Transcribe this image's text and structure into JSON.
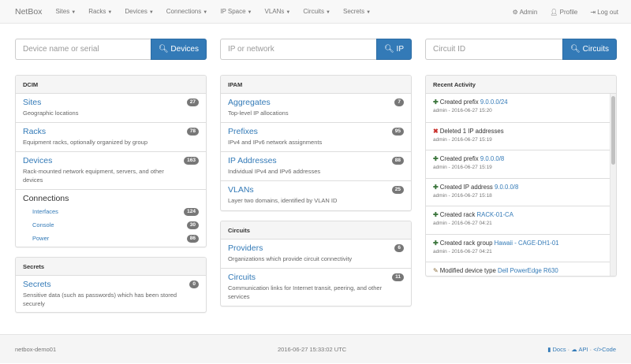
{
  "nav": {
    "brand": "NetBox",
    "menus": [
      "Sites",
      "Racks",
      "Devices",
      "Connections",
      "IP Space",
      "VLANs",
      "Circuits",
      "Secrets"
    ],
    "admin": "Admin",
    "profile": "Profile",
    "logout": "Log out"
  },
  "search": [
    {
      "placeholder": "Device name or serial",
      "button": "Devices"
    },
    {
      "placeholder": "IP or network",
      "button": "IP"
    },
    {
      "placeholder": "Circuit ID",
      "button": "Circuits"
    }
  ],
  "dcim": {
    "heading": "DCIM",
    "items": [
      {
        "title": "Sites",
        "desc": "Geographic locations",
        "count": "27"
      },
      {
        "title": "Racks",
        "desc": "Equipment racks, optionally organized by group",
        "count": "78"
      },
      {
        "title": "Devices",
        "desc": "Rack-mounted network equipment, servers, and other devices",
        "count": "163"
      }
    ],
    "connections": {
      "title": "Connections",
      "items": [
        {
          "label": "Interfaces",
          "count": "124"
        },
        {
          "label": "Console",
          "count": "30"
        },
        {
          "label": "Power",
          "count": "86"
        }
      ]
    }
  },
  "secrets": {
    "heading": "Secrets",
    "items": [
      {
        "title": "Secrets",
        "desc": "Sensitive data (such as passwords) which has been stored securely",
        "count": "0"
      }
    ]
  },
  "ipam": {
    "heading": "IPAM",
    "items": [
      {
        "title": "Aggregates",
        "desc": "Top-level IP allocations",
        "count": "7"
      },
      {
        "title": "Prefixes",
        "desc": "IPv4 and IPv6 network assignments",
        "count": "95"
      },
      {
        "title": "IP Addresses",
        "desc": "Individual IPv4 and IPv6 addresses",
        "count": "88"
      },
      {
        "title": "VLANs",
        "desc": "Layer two domains, identified by VLAN ID",
        "count": "25"
      }
    ]
  },
  "circuits": {
    "heading": "Circuits",
    "items": [
      {
        "title": "Providers",
        "desc": "Organizations which provide circuit connectivity",
        "count": "6"
      },
      {
        "title": "Circuits",
        "desc": "Communication links for Internet transit, peering, and other services",
        "count": "11"
      }
    ]
  },
  "activity": {
    "heading": "Recent Activity",
    "items": [
      {
        "icon": "plus",
        "text": "Created prefix",
        "link": "9.0.0.0/24",
        "meta": "admin - 2016-06-27 15:20"
      },
      {
        "icon": "remove",
        "text": "Deleted 1 IP addresses",
        "link": "",
        "meta": "admin - 2016-06-27 15:19"
      },
      {
        "icon": "plus",
        "text": "Created prefix",
        "link": "9.0.0.0/8",
        "meta": "admin - 2016-06-27 15:19"
      },
      {
        "icon": "plus",
        "text": "Created IP address",
        "link": "9.0.0.0/8",
        "meta": "admin - 2016-06-27 15:18"
      },
      {
        "icon": "plus",
        "text": "Created rack",
        "link": "RACK-01-CA",
        "meta": "admin - 2016-06-27 04:21"
      },
      {
        "icon": "plus",
        "text": "Created rack group",
        "link": "Hawaii - CAGE-DH1-01",
        "meta": "admin - 2016-06-27 04:21"
      },
      {
        "icon": "pencil",
        "text": "Modified device type",
        "link": "Dell PowerEdge R630",
        "meta": ""
      }
    ]
  },
  "footer": {
    "hostname": "netbox-demo01",
    "time": "2016-06-27 15:33:02 UTC",
    "docs": "Docs",
    "api": "API",
    "code": "Code"
  }
}
